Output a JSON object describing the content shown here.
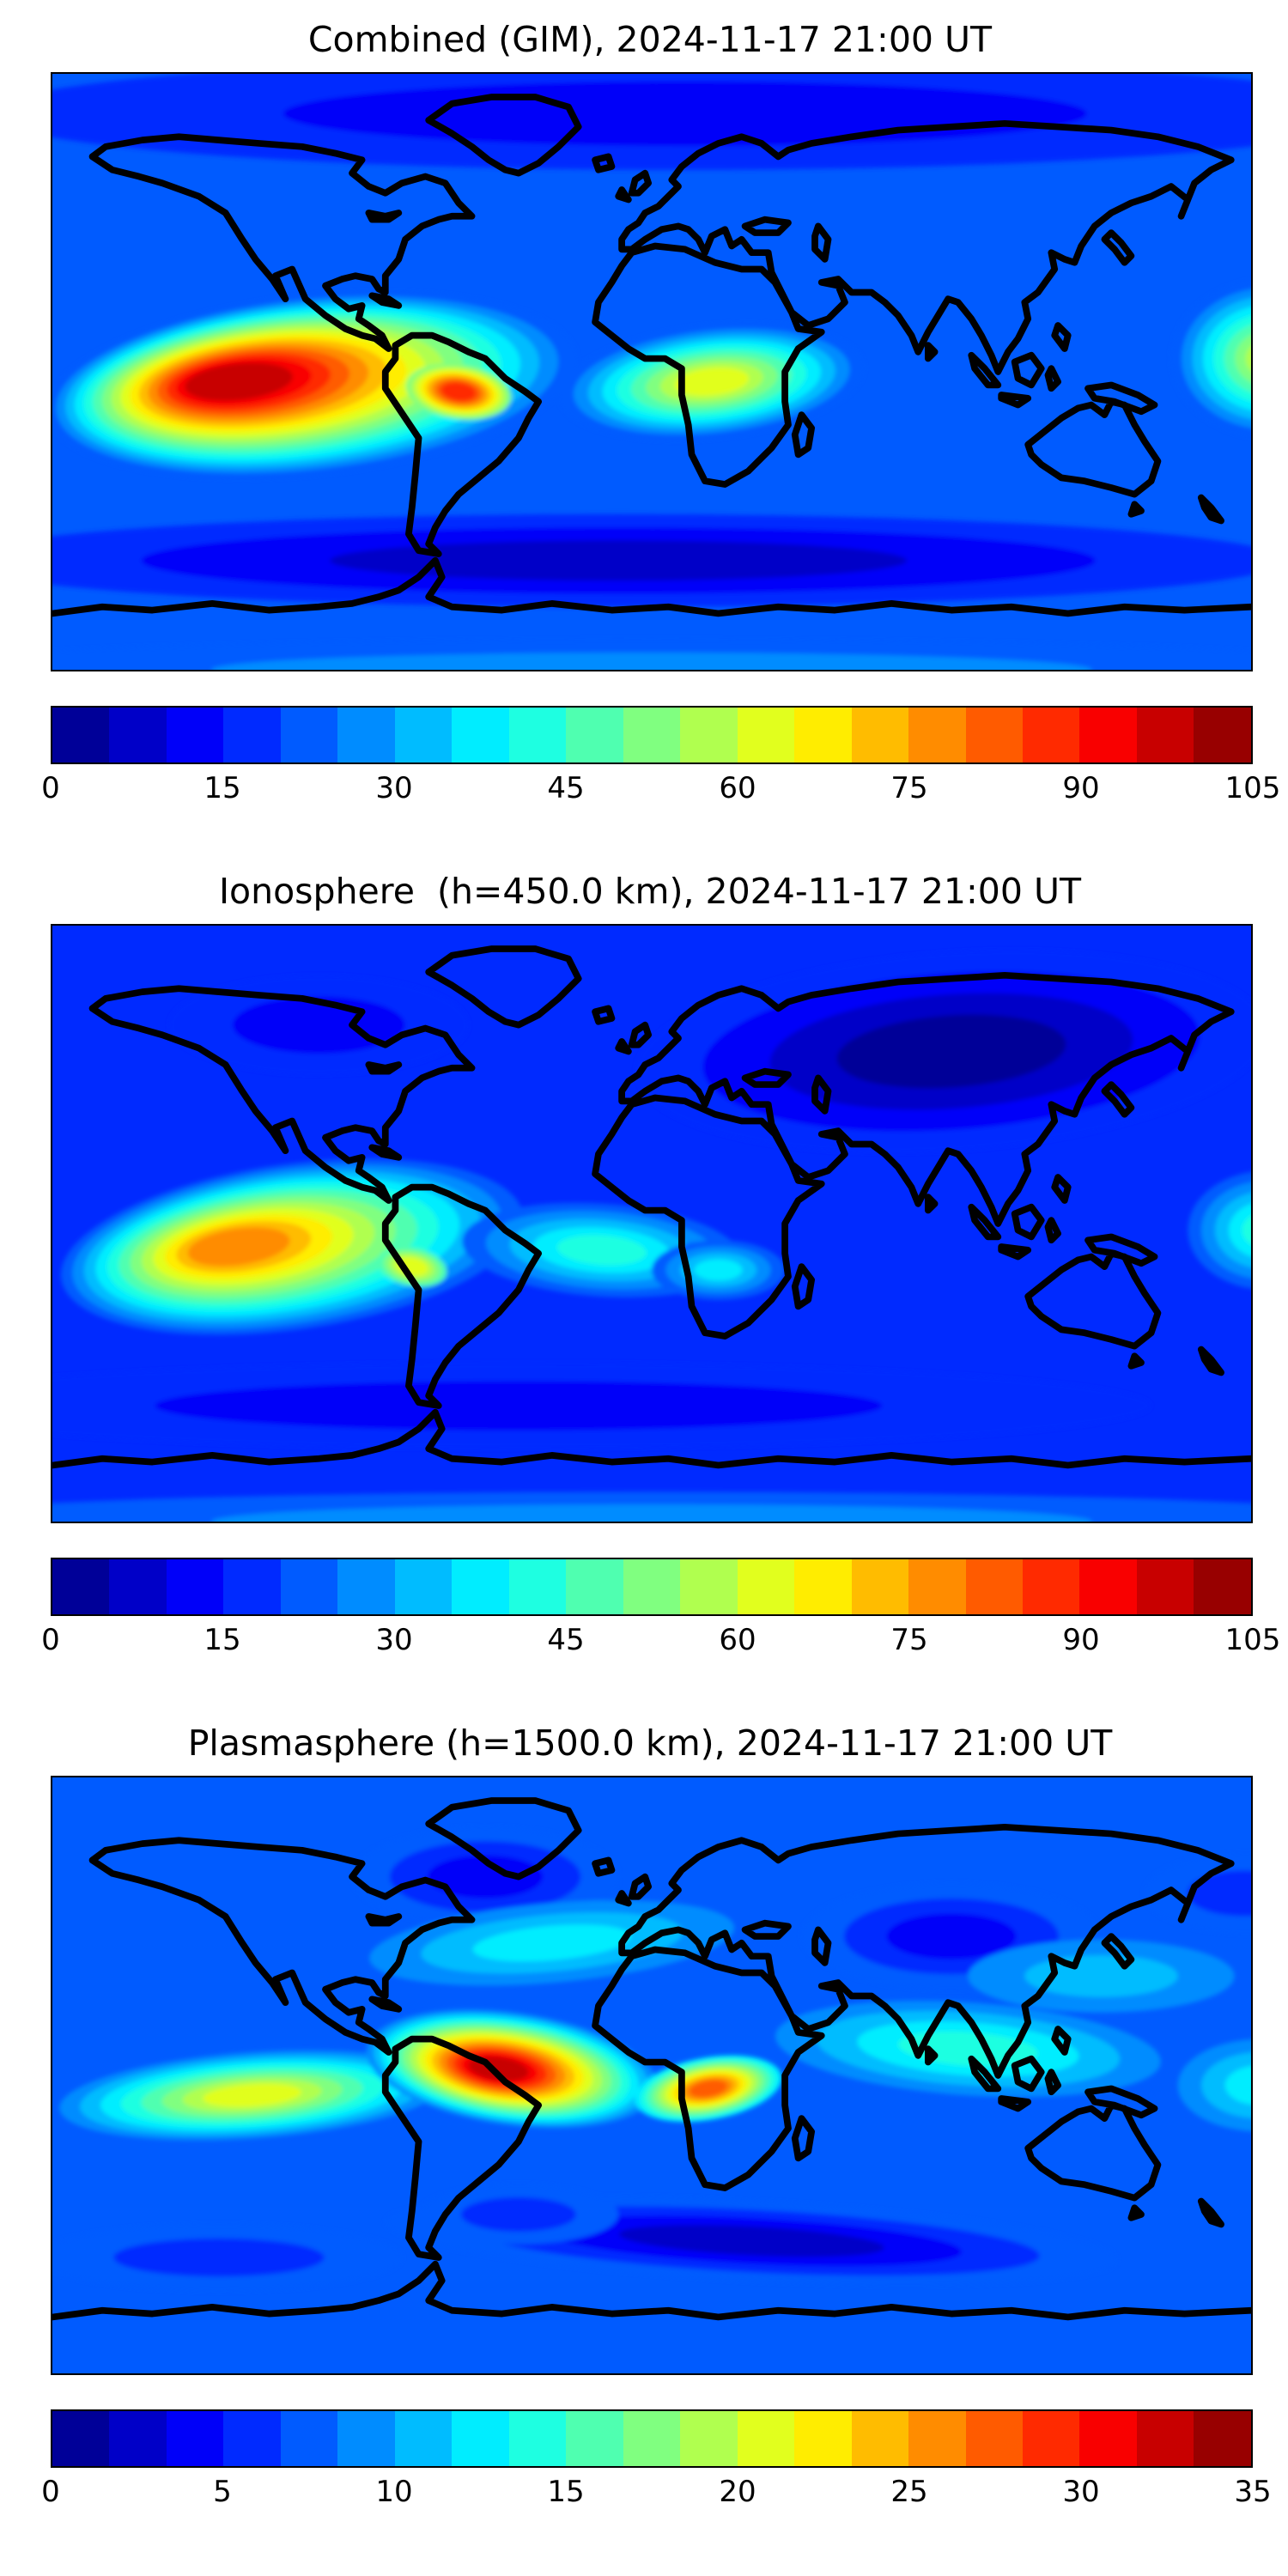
{
  "figure": {
    "background_color": "#ffffff",
    "coastline_color": "#000000",
    "colormap": {
      "name": "jet",
      "segments": [
        "#000098",
        "#0000C8",
        "#0000F9",
        "#002AFF",
        "#005BFF",
        "#008CFF",
        "#00BCFF",
        "#00EDFF",
        "#1EFFE1",
        "#4FFFB0",
        "#80FF80",
        "#B0FF4F",
        "#E1FF1E",
        "#FFED00",
        "#FFBC00",
        "#FF8C00",
        "#FF5B00",
        "#FF2A00",
        "#F90000",
        "#C80000",
        "#980000"
      ]
    },
    "panels": [
      {
        "id": "combined",
        "title": "Combined (GIM), 2024-11-17 21:00 UT",
        "colorbar": {
          "ticks": [
            "0",
            "15",
            "30",
            "45",
            "60",
            "75",
            "90",
            "105"
          ]
        }
      },
      {
        "id": "ionosphere",
        "title": "Ionosphere  (h=450.0 km), 2024-11-17 21:00 UT",
        "colorbar": {
          "ticks": [
            "0",
            "15",
            "30",
            "45",
            "60",
            "75",
            "90",
            "105"
          ]
        }
      },
      {
        "id": "plasmasphere",
        "title": "Plasmasphere (h=1500.0 km), 2024-11-17 21:00 UT",
        "colorbar": {
          "ticks": [
            "0",
            "5",
            "10",
            "15",
            "20",
            "25",
            "30",
            "35"
          ]
        }
      }
    ]
  },
  "chart_data": [
    {
      "type": "heatmap",
      "title": "Combined (GIM), 2024-11-17 21:00 UT",
      "projection": "equirectangular",
      "lon_range": [
        -180,
        180
      ],
      "lat_range": [
        -90,
        90
      ],
      "value_range": [
        0,
        105
      ],
      "levels_step": 5,
      "colorbar_ticks": [
        0,
        15,
        30,
        45,
        60,
        75,
        90,
        105
      ],
      "colormap": "jet",
      "background_value": 22,
      "features": [
        {
          "name": "high-latitude-north-depletion",
          "lon": 10,
          "lat": 78,
          "peak_value": 10,
          "extent_lon": 210,
          "extent_lat": 17
        },
        {
          "name": "south-midlatitude-trough",
          "lon": -10,
          "lat": -57,
          "peak_value": 9,
          "extent_lon": 200,
          "extent_lat": 14
        },
        {
          "name": "antarctic-band",
          "lon": 0,
          "lat": -90,
          "peak_value": 30,
          "extent_lon": 230,
          "extent_lat": 9
        },
        {
          "name": "equatorial-anomaly-maximum-pacific",
          "lon": -102,
          "lat": -4,
          "peak_value": 103,
          "extent_lon": 80,
          "extent_lat": 27,
          "tilt": -6,
          "drift_lon": -22,
          "drift_lat": 1
        },
        {
          "name": "south-america-maximum",
          "lon": -58,
          "lat": -6,
          "peak_value": 90,
          "extent_lon": 25,
          "extent_lat": 13,
          "tilt": 8,
          "min_value": 57
        },
        {
          "name": "africa-enhancement",
          "lon": 18,
          "lat": -3,
          "peak_value": 68,
          "extent_lon": 46,
          "extent_lat": 17,
          "tilt": -6
        },
        {
          "name": "east-edge-wrap-enhancement",
          "lon": 186,
          "lat": 4,
          "peak_value": 64,
          "extent_lon": 30,
          "extent_lat": 24
        }
      ]
    },
    {
      "type": "heatmap",
      "title": "Ionosphere  (h=450.0 km), 2024-11-17 21:00 UT",
      "projection": "equirectangular",
      "lon_range": [
        -180,
        180
      ],
      "lat_range": [
        -90,
        90
      ],
      "value_range": [
        0,
        105
      ],
      "levels_step": 5,
      "colorbar_ticks": [
        0,
        15,
        30,
        45,
        60,
        75,
        90,
        105
      ],
      "colormap": "jet",
      "background_value": 19,
      "features": [
        {
          "name": "nightside-eurasia-depletion",
          "lon": 90,
          "lat": 52,
          "peak_value": 0,
          "extent_lon": 95,
          "extent_lat": 30,
          "tilt": -4
        },
        {
          "name": "north-america-depletion",
          "lon": -100,
          "lat": 60,
          "peak_value": 9,
          "extent_lon": 45,
          "extent_lat": 15
        },
        {
          "name": "south-midlatitude-trough",
          "lon": -40,
          "lat": -55,
          "peak_value": 8,
          "extent_lon": 190,
          "extent_lat": 13
        },
        {
          "name": "antarctic-band",
          "lon": 0,
          "lat": -90,
          "peak_value": 29,
          "extent_lon": 230,
          "extent_lat": 9
        },
        {
          "name": "pacific-anomaly-maximum",
          "lon": -108,
          "lat": -7,
          "peak_value": 80,
          "extent_lon": 70,
          "extent_lat": 25,
          "tilt": -8,
          "drift_lon": -16
        },
        {
          "name": "peru-extension",
          "lon": -72,
          "lat": -13,
          "peak_value": 66,
          "extent_lon": 20,
          "extent_lat": 11,
          "tilt": 12,
          "min_value": 47
        },
        {
          "name": "atlantic-africa-band",
          "lon": -15,
          "lat": -8,
          "peak_value": 45,
          "extent_lon": 42,
          "extent_lat": 14,
          "tilt": 4
        },
        {
          "name": "central-africa-patch",
          "lon": 20,
          "lat": -14,
          "peak_value": 40,
          "extent_lon": 20,
          "extent_lat": 9
        },
        {
          "name": "east-edge-wrap-enhancement",
          "lon": 185,
          "lat": -2,
          "peak_value": 42,
          "extent_lon": 24,
          "extent_lat": 18
        }
      ]
    },
    {
      "type": "heatmap",
      "title": "Plasmasphere (h=1500.0 km), 2024-11-17 21:00 UT",
      "projection": "equirectangular",
      "lon_range": [
        -180,
        180
      ],
      "lat_range": [
        -90,
        90
      ],
      "value_range": [
        0,
        35
      ],
      "levels_step": 1.6667,
      "colorbar_ticks": [
        0,
        5,
        10,
        15,
        20,
        25,
        30,
        35
      ],
      "colormap": "jet",
      "background_value": 8,
      "features": [
        {
          "name": "north-canada-depletion",
          "lon": -50,
          "lat": 60,
          "peak_value": 3,
          "extent_lon": 40,
          "extent_lat": 15
        },
        {
          "name": "central-asia-depletion",
          "lon": 90,
          "lat": 42,
          "peak_value": 3,
          "extent_lon": 45,
          "extent_lat": 16
        },
        {
          "name": "north-pacific-depletion",
          "lon": 178,
          "lat": 55,
          "peak_value": 4.5,
          "extent_lon": 30,
          "extent_lat": 12
        },
        {
          "name": "south-indian-trough",
          "lon": 30,
          "lat": -50,
          "peak_value": 1.5,
          "extent_lon": 110,
          "extent_lat": 12,
          "tilt": 3
        },
        {
          "name": "south-pacific-trough",
          "lon": -130,
          "lat": -55,
          "peak_value": 4,
          "extent_lon": 55,
          "extent_lat": 10
        },
        {
          "name": "south-atlantic-patch",
          "lon": -40,
          "lat": -42,
          "peak_value": 5,
          "extent_lon": 30,
          "extent_lat": 9
        },
        {
          "name": "north-atlantic-band",
          "lon": -30,
          "lat": 40,
          "peak_value": 12.5,
          "extent_lon": 55,
          "extent_lat": 12,
          "tilt": -5
        },
        {
          "name": "east-asia-band",
          "lon": 135,
          "lat": 30,
          "peak_value": 11,
          "extent_lon": 40,
          "extent_lat": 11
        },
        {
          "name": "pacific-equatorial-band",
          "lon": -120,
          "lat": -6,
          "peak_value": 21,
          "extent_lon": 58,
          "extent_lat": 13,
          "tilt": -4
        },
        {
          "name": "south-asia-band",
          "lon": 95,
          "lat": 8,
          "peak_value": 15,
          "extent_lon": 58,
          "extent_lat": 14,
          "tilt": 4
        },
        {
          "name": "east-edge-wrap-band",
          "lon": 183,
          "lat": -3,
          "peak_value": 13,
          "extent_lon": 25,
          "extent_lat": 14
        },
        {
          "name": "atlantic-plasmasphere-maximum",
          "lon": -42,
          "lat": 2,
          "peak_value": 33.5,
          "extent_lon": 44,
          "extent_lat": 17,
          "tilt": 8,
          "drift_lon": -4
        },
        {
          "name": "africa-plasmasphere-maximum",
          "lon": 17,
          "lat": -4,
          "peak_value": 28,
          "extent_lon": 26,
          "extent_lat": 11,
          "tilt": -10,
          "min_value": 12
        }
      ]
    }
  ]
}
